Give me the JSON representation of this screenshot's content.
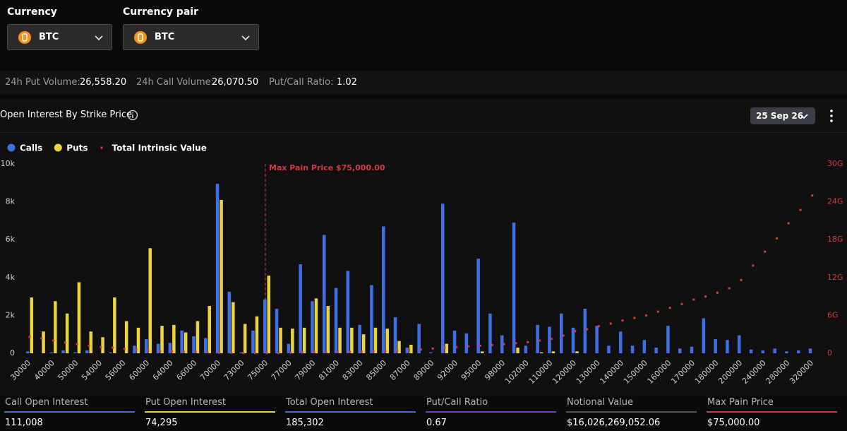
{
  "filters": {
    "currency": {
      "label": "Currency",
      "value": "BTC"
    },
    "pair": {
      "label": "Currency pair",
      "value": "BTC"
    }
  },
  "stats": [
    {
      "label": "24h Put Volume:",
      "value": "26,558.20"
    },
    {
      "label": "24h Call Volume:",
      "value": "26,070.50"
    },
    {
      "label": "Put/Call Ratio:",
      "value": "1.02"
    }
  ],
  "section": {
    "title": "Open Interest By Strike Price",
    "date": "25 Sep 26"
  },
  "chart_data": {
    "type": "bar",
    "categories": [
      "30000",
      null,
      "40000",
      null,
      "50000",
      null,
      "54000",
      null,
      "56000",
      null,
      "60000",
      null,
      "64000",
      null,
      "66000",
      null,
      "70000",
      null,
      "73000",
      null,
      "75000",
      null,
      "77000",
      null,
      "79000",
      null,
      "81000",
      null,
      "83000",
      null,
      "85000",
      null,
      "87000",
      null,
      "89000",
      null,
      "92000",
      null,
      "95000",
      null,
      "98000",
      null,
      "102000",
      null,
      "110000",
      null,
      "120000",
      null,
      "130000",
      null,
      "140000",
      null,
      "150000",
      null,
      "160000",
      null,
      "170000",
      null,
      "180000",
      null,
      "200000",
      null,
      "240000",
      null,
      "280000",
      null,
      "320000"
    ],
    "series": [
      {
        "name": "Calls",
        "color": "#3f6ee6",
        "values": [
          0.1,
          0,
          0.05,
          0.15,
          0.05,
          0.15,
          0,
          0.05,
          0,
          0.4,
          0.75,
          0.5,
          0.55,
          1.2,
          0.9,
          0.8,
          8.95,
          3.25,
          0.05,
          1.2,
          2.85,
          2.35,
          0.5,
          4.7,
          2.75,
          6.25,
          3.45,
          4.35,
          1.5,
          3.6,
          6.7,
          1.9,
          0.3,
          1.55,
          0.05,
          7.9,
          1.2,
          1.05,
          5.0,
          2.1,
          0.95,
          6.9,
          0.4,
          1.5,
          1.4,
          2.1,
          1.35,
          2.35,
          1.45,
          0.4,
          1.15,
          0.4,
          0.7,
          0.3,
          1.45,
          0.25,
          0.35,
          1.85,
          0.75,
          0.7,
          0.95,
          0.2,
          0.15,
          0.25,
          0.1,
          0.15,
          0.25
        ]
      },
      {
        "name": "Puts",
        "color": "#ecd43e",
        "values": [
          2.95,
          1.15,
          2.75,
          2.1,
          3.75,
          1.15,
          0.85,
          2.95,
          1.7,
          1.35,
          5.55,
          1.45,
          1.5,
          1.1,
          1.7,
          2.5,
          8.1,
          2.7,
          1.55,
          1.95,
          4.1,
          1.35,
          1.3,
          1.35,
          2.9,
          2.5,
          1.35,
          1.35,
          1.0,
          1.35,
          1.3,
          0.65,
          0.45,
          0,
          0,
          0.5,
          0,
          0,
          0.1,
          0,
          0,
          0.3,
          0,
          0.05,
          0.1,
          0,
          0.1,
          0,
          0,
          0,
          0,
          0,
          0,
          0,
          0,
          0,
          0,
          0,
          0,
          0,
          0,
          0,
          0,
          0,
          0,
          0,
          0
        ]
      },
      {
        "name": "Total Intrinsic Value",
        "color": "#d8383f",
        "axis": "y2",
        "type": "scatter",
        "values": [
          2.6,
          2.35,
          2.0,
          1.7,
          1.45,
          1.2,
          1.0,
          0.9,
          0.7,
          0.55,
          0.45,
          0.35,
          0.3,
          0.25,
          0.2,
          0.15,
          0.1,
          0.1,
          0.05,
          0.05,
          0.05,
          0.05,
          0.1,
          0.1,
          0.15,
          0.15,
          0.2,
          0.2,
          0.25,
          0.3,
          0.35,
          0.4,
          0.5,
          0.6,
          0.75,
          0.9,
          1.0,
          1.1,
          1.2,
          1.3,
          1.45,
          1.6,
          1.75,
          2.0,
          2.3,
          2.8,
          3.5,
          3.8,
          4.3,
          4.7,
          5.2,
          5.6,
          6.0,
          6.6,
          7.2,
          7.8,
          8.5,
          9.0,
          9.6,
          10.3,
          11.6,
          13.9,
          16.1,
          18.2,
          20.6,
          22.7,
          25.0
        ]
      }
    ],
    "ylim": [
      0,
      10
    ],
    "yticks": [
      0,
      {
        "value": 2,
        "label": "2k"
      },
      {
        "value": 4,
        "label": "4k"
      },
      {
        "value": 6,
        "label": "6k"
      },
      {
        "value": 8,
        "label": "8k"
      },
      {
        "value": 10,
        "label": "10k"
      }
    ],
    "y2lim": [
      0,
      30
    ],
    "y2ticks": [
      0,
      {
        "value": 6,
        "label": "6G"
      },
      {
        "value": 12,
        "label": "12G"
      },
      {
        "value": 18,
        "label": "18G"
      },
      {
        "value": 24,
        "label": "24G"
      },
      {
        "value": 30,
        "label": "30G"
      }
    ],
    "grid": false,
    "legend": "top-left",
    "annotation": {
      "text": "Max Pain Price $75,000.00",
      "x": "75000",
      "color": "#d8383f"
    }
  },
  "summary": [
    {
      "label": "Call Open Interest",
      "value": "111,008"
    },
    {
      "label": "Put Open Interest",
      "value": "74,295"
    },
    {
      "label": "Total Open Interest",
      "value": "185,302"
    },
    {
      "label": "Put/Call Ratio",
      "value": "0.67"
    },
    {
      "label": "Notional Value",
      "value": "$16,026,269,052.06"
    },
    {
      "label": "Max Pain Price",
      "value": "$75,000.00"
    }
  ]
}
